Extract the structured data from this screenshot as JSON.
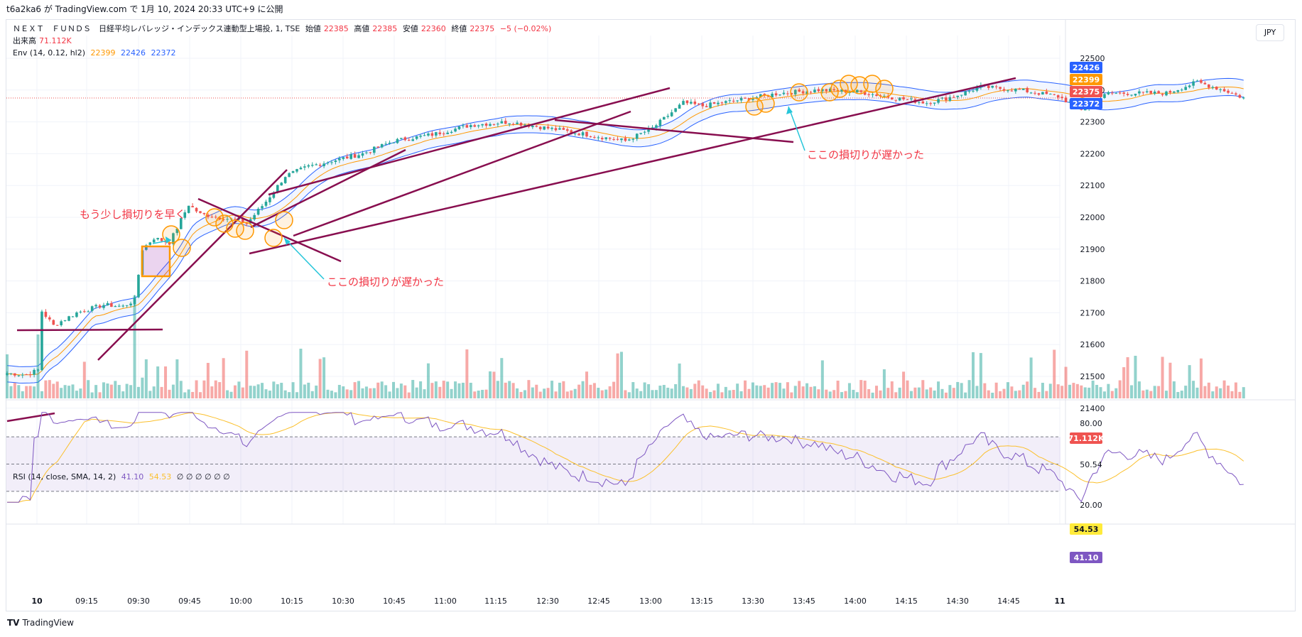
{
  "header": {
    "published_line": "t6a2ka6 が TradingView.com で 1月 10, 2024 20:33 UTC+9 に公開"
  },
  "legend": {
    "symbol": "ＮＥＸＴ　ＦＵＮＤＳ　日経平均レバレッジ・インデックス連動型上場投, 1, TSE",
    "open_label": "始値",
    "open": "22385",
    "high_label": "高値",
    "high": "22385",
    "low_label": "安値",
    "low": "22360",
    "close_label": "終値",
    "close": "22375",
    "change": "−5 (−0.02%)",
    "volume_label": "出来高",
    "volume": "71.112K",
    "env_label": "Env (14, 0.12, hl2)",
    "env_mid": "22399",
    "env_upper": "22426",
    "env_lower": "22372",
    "rsi_label": "RSI (14, close, SMA, 14, 2)",
    "rsi_value": "41.10",
    "rsi_ma": "54.53",
    "rsi_hidden": "∅ ∅ ∅ ∅ ∅ ∅"
  },
  "currency": "JPY",
  "footer": {
    "logo": "TV",
    "brand": "TradingView"
  },
  "colors": {
    "up": "#26a69a",
    "down": "#ef5350",
    "env_mid": "#ff9800",
    "env_band": "#2962ff",
    "rsi": "#7e57c2",
    "rsi_ma": "#fbc02d",
    "trendline": "#880e4f",
    "annotation": "#f23645",
    "arrow": "#26c6da",
    "circle": "#ff9800"
  },
  "chart_data": [
    {
      "type": "candlestick",
      "y_axis": {
        "ticks": [
          21400,
          21500,
          21600,
          21700,
          21800,
          21900,
          22000,
          22100,
          22200,
          22300,
          22400,
          22500
        ]
      },
      "x_axis": {
        "ticks": [
          "10",
          "09:15",
          "09:30",
          "09:45",
          "10:00",
          "10:15",
          "10:30",
          "10:45",
          "11:00",
          "11:15",
          "12:30",
          "12:45",
          "13:00",
          "13:15",
          "13:30",
          "13:45",
          "14:00",
          "14:15",
          "14:30",
          "14:45",
          "11"
        ]
      },
      "price_path": [
        [
          0,
          21510
        ],
        [
          5,
          21505
        ],
        [
          8,
          21520
        ],
        [
          9,
          21705
        ],
        [
          12,
          21660
        ],
        [
          18,
          21700
        ],
        [
          25,
          21725
        ],
        [
          30,
          21720
        ],
        [
          33,
          21740
        ],
        [
          35,
          21900
        ],
        [
          38,
          21935
        ],
        [
          42,
          21920
        ],
        [
          47,
          22040
        ],
        [
          50,
          22010
        ],
        [
          55,
          22000
        ],
        [
          60,
          21990
        ],
        [
          62,
          21980
        ],
        [
          67,
          22050
        ],
        [
          72,
          22130
        ],
        [
          78,
          22160
        ],
        [
          85,
          22180
        ],
        [
          92,
          22200
        ],
        [
          100,
          22240
        ],
        [
          110,
          22260
        ],
        [
          120,
          22290
        ],
        [
          130,
          22300
        ],
        [
          140,
          22280
        ],
        [
          150,
          22260
        ],
        [
          160,
          22240
        ],
        [
          167,
          22280
        ],
        [
          175,
          22360
        ],
        [
          180,
          22350
        ],
        [
          190,
          22370
        ],
        [
          200,
          22390
        ],
        [
          210,
          22400
        ],
        [
          220,
          22395
        ],
        [
          230,
          22375
        ],
        [
          238,
          22360
        ],
        [
          245,
          22380
        ],
        [
          252,
          22410
        ],
        [
          262,
          22400
        ],
        [
          272,
          22380
        ],
        [
          278,
          22340
        ],
        [
          285,
          22390
        ],
        [
          300,
          22390
        ],
        [
          308,
          22425
        ],
        [
          316,
          22395
        ],
        [
          320,
          22375
        ]
      ],
      "labels": {
        "last_price": "22375",
        "env_upper": "22426",
        "env_mid": "22399",
        "env_lower": "22372",
        "volume": "71.112K"
      }
    },
    {
      "type": "line",
      "name": "RSI",
      "y_axis": {
        "ticks": [
          "80.00",
          "69.67",
          "50.54",
          "20.00"
        ]
      },
      "levels": [
        70,
        50,
        30
      ],
      "labels": {
        "rsi_ma": "54.53",
        "rsi": "41.10"
      },
      "range": [
        20,
        80
      ]
    }
  ],
  "annotations": {
    "note_left_top": "もう少し損切りを早く",
    "note_left_bottom": "ここの損切りが遅かった",
    "note_right": "ここの損切りが遅かった"
  }
}
